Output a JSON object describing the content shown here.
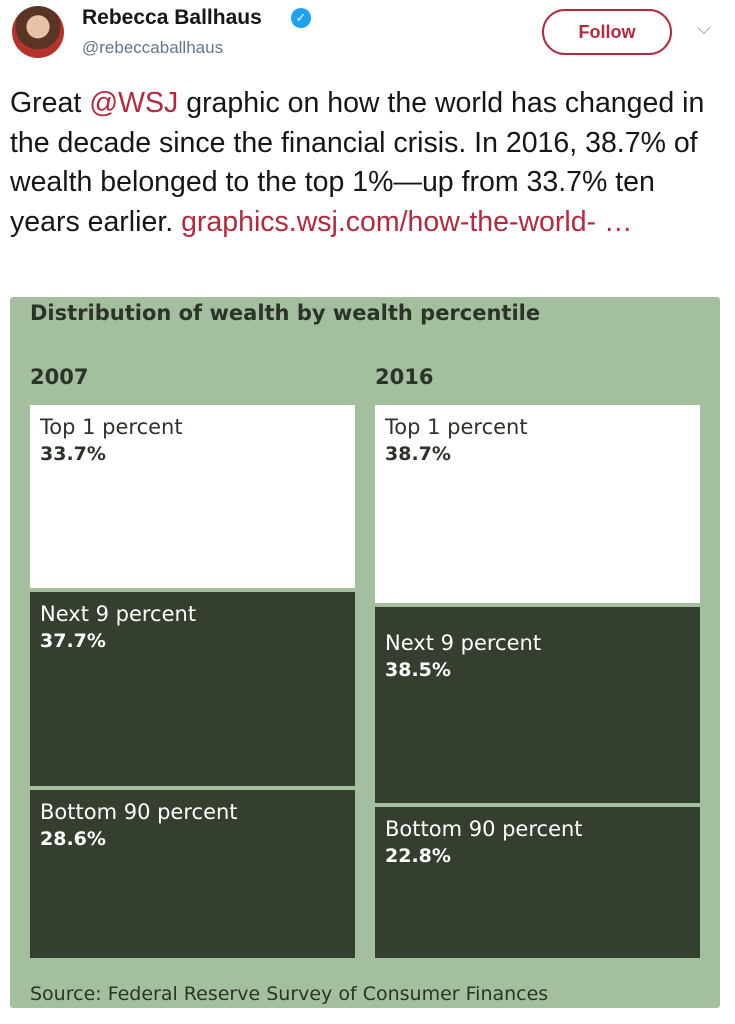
{
  "tweet": {
    "name": "Rebecca Ballhaus",
    "handle": "@rebeccaballhaus",
    "follow_label": "Follow",
    "text_before": "Great ",
    "mention": "@WSJ",
    "text_after": " graphic on how the world has changed in the decade since the financial crisis. In 2016, 38.7% of wealth belonged to the top 1%—up from 33.7% ten years earlier. ",
    "link": "graphics.wsj.com/how-the-world- …"
  },
  "graphic": {
    "title": "Distribution of wealth by wealth percentile",
    "source": "Source: Federal Reserve Survey of Consumer Finances",
    "colors": {
      "background": "#a3bf9e",
      "top": "#ffffff",
      "lower": "#353f30"
    },
    "columns": [
      {
        "year": "2007",
        "segments": [
          {
            "label": "Top 1 percent",
            "value": "33.7%"
          },
          {
            "label": "Next 9 percent",
            "value": "37.7%"
          },
          {
            "label": "Bottom 90 percent",
            "value": "28.6%"
          }
        ]
      },
      {
        "year": "2016",
        "segments": [
          {
            "label": "Top 1 percent",
            "value": "38.7%"
          },
          {
            "label": "Next 9 percent",
            "value": "38.5%"
          },
          {
            "label": "Bottom 90 percent",
            "value": "22.8%"
          }
        ]
      }
    ]
  }
}
